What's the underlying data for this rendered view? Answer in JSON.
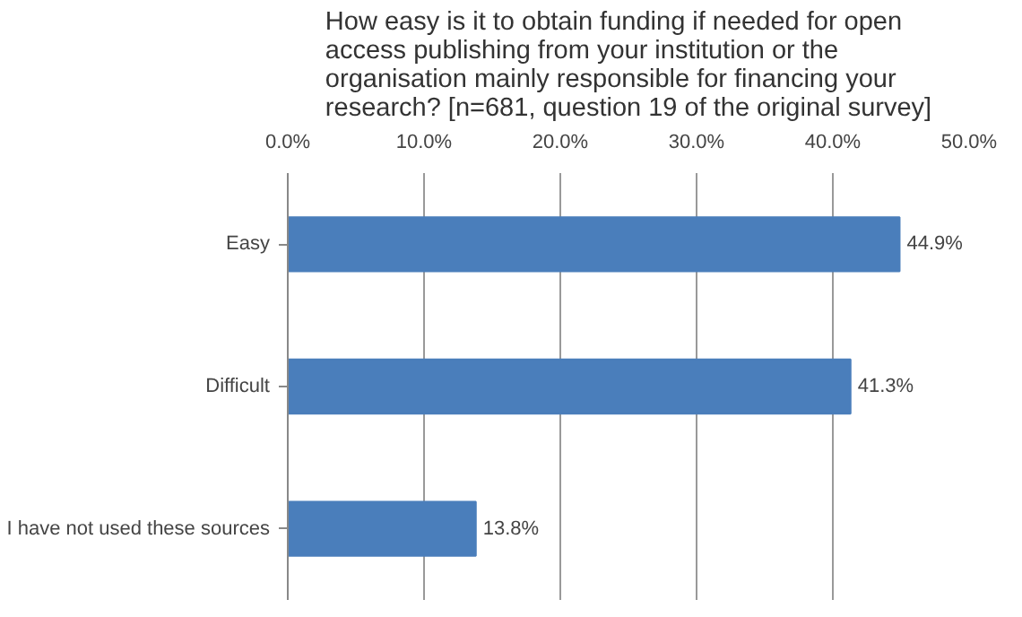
{
  "chart_data": {
    "type": "bar",
    "orientation": "horizontal",
    "title": "How easy is it to obtain funding if needed for open\naccess publishing from your institution or the\norganisation mainly responsible for financing your\nresearch? [n=681, question 19 of the original survey]",
    "categories": [
      "Easy",
      "Difficult",
      "I have not used these sources"
    ],
    "values": [
      44.9,
      41.3,
      13.8
    ],
    "value_labels": [
      "44.9%",
      "41.3%",
      "13.8%"
    ],
    "color": "#4a7ebb",
    "xlim": [
      0,
      50
    ],
    "xticks": [
      {
        "value": 0,
        "label": "0.0%"
      },
      {
        "value": 10,
        "label": "10.0%"
      },
      {
        "value": 20,
        "label": "20.0%"
      },
      {
        "value": 30,
        "label": "30.0%"
      },
      {
        "value": 40,
        "label": "40.0%"
      },
      {
        "value": 50,
        "label": "50.0%"
      }
    ],
    "grid": "x"
  }
}
